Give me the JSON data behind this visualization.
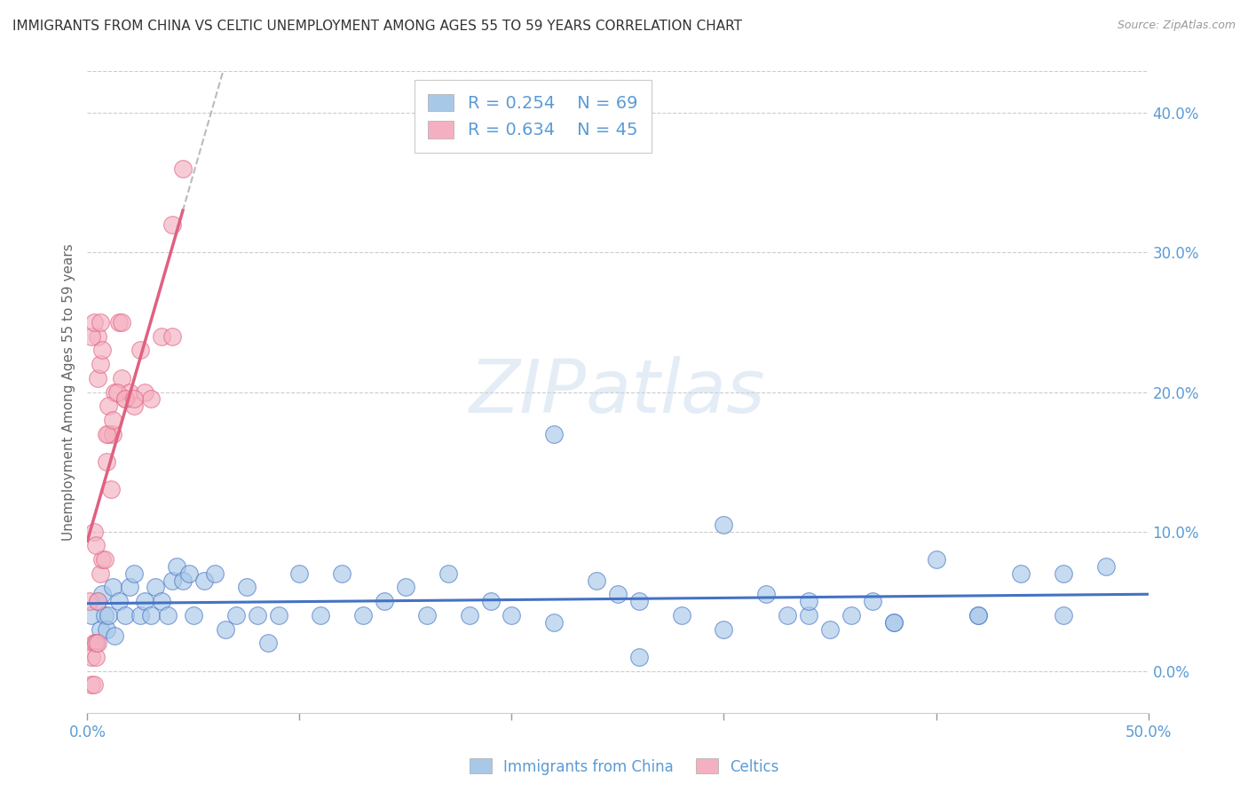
{
  "title": "IMMIGRANTS FROM CHINA VS CELTIC UNEMPLOYMENT AMONG AGES 55 TO 59 YEARS CORRELATION CHART",
  "source": "Source: ZipAtlas.com",
  "ylabel": "Unemployment Among Ages 55 to 59 years",
  "watermark": "ZIPatlas",
  "xlim": [
    0.0,
    0.5
  ],
  "ylim": [
    -0.03,
    0.43
  ],
  "yticks": [
    0.0,
    0.1,
    0.2,
    0.3,
    0.4
  ],
  "xtick_positions": [
    0.0,
    0.1,
    0.2,
    0.3,
    0.4,
    0.5
  ],
  "ytick_labels_right": [
    "0.0%",
    "10.0%",
    "20.0%",
    "30.0%",
    "40.0%"
  ],
  "blue_R": "0.254",
  "blue_N": "69",
  "pink_R": "0.634",
  "pink_N": "45",
  "blue_fill_color": "#A8C8E8",
  "pink_fill_color": "#F4B0C0",
  "blue_line_color": "#4472C4",
  "pink_line_color": "#E06080",
  "axis_color": "#5B9BD5",
  "legend_label_blue": "Immigrants from China",
  "legend_label_pink": "Celtics",
  "blue_points_x": [
    0.002,
    0.004,
    0.005,
    0.006,
    0.007,
    0.008,
    0.009,
    0.01,
    0.012,
    0.013,
    0.015,
    0.018,
    0.02,
    0.022,
    0.025,
    0.027,
    0.03,
    0.032,
    0.035,
    0.038,
    0.04,
    0.042,
    0.045,
    0.048,
    0.05,
    0.055,
    0.06,
    0.065,
    0.07,
    0.075,
    0.08,
    0.085,
    0.09,
    0.1,
    0.11,
    0.12,
    0.13,
    0.14,
    0.15,
    0.16,
    0.17,
    0.18,
    0.19,
    0.2,
    0.22,
    0.24,
    0.25,
    0.26,
    0.28,
    0.3,
    0.32,
    0.33,
    0.35,
    0.37,
    0.38,
    0.4,
    0.42,
    0.44,
    0.46,
    0.48,
    0.22,
    0.26,
    0.3,
    0.34,
    0.38,
    0.34,
    0.36,
    0.42,
    0.46
  ],
  "blue_points_y": [
    0.04,
    0.02,
    0.05,
    0.03,
    0.055,
    0.04,
    0.03,
    0.04,
    0.06,
    0.025,
    0.05,
    0.04,
    0.06,
    0.07,
    0.04,
    0.05,
    0.04,
    0.06,
    0.05,
    0.04,
    0.065,
    0.075,
    0.065,
    0.07,
    0.04,
    0.065,
    0.07,
    0.03,
    0.04,
    0.06,
    0.04,
    0.02,
    0.04,
    0.07,
    0.04,
    0.07,
    0.04,
    0.05,
    0.06,
    0.04,
    0.07,
    0.04,
    0.05,
    0.04,
    0.17,
    0.065,
    0.055,
    0.05,
    0.04,
    0.105,
    0.055,
    0.04,
    0.03,
    0.05,
    0.035,
    0.08,
    0.04,
    0.07,
    0.04,
    0.075,
    0.035,
    0.01,
    0.03,
    0.04,
    0.035,
    0.05,
    0.04,
    0.04,
    0.07
  ],
  "pink_points_x": [
    0.001,
    0.002,
    0.002,
    0.003,
    0.003,
    0.004,
    0.004,
    0.005,
    0.005,
    0.006,
    0.007,
    0.008,
    0.009,
    0.01,
    0.011,
    0.012,
    0.013,
    0.015,
    0.016,
    0.018,
    0.02,
    0.022,
    0.025,
    0.027,
    0.03,
    0.035,
    0.04,
    0.045,
    0.003,
    0.004,
    0.005,
    0.005,
    0.006,
    0.007,
    0.009,
    0.01,
    0.012,
    0.014,
    0.016,
    0.018,
    0.022,
    0.04,
    0.002,
    0.003,
    0.006
  ],
  "pink_points_y": [
    0.05,
    0.01,
    -0.01,
    0.02,
    -0.01,
    0.02,
    0.01,
    0.05,
    0.02,
    0.07,
    0.08,
    0.08,
    0.15,
    0.17,
    0.13,
    0.17,
    0.2,
    0.25,
    0.21,
    0.195,
    0.2,
    0.19,
    0.23,
    0.2,
    0.195,
    0.24,
    0.32,
    0.36,
    0.1,
    0.09,
    0.21,
    0.24,
    0.22,
    0.23,
    0.17,
    0.19,
    0.18,
    0.2,
    0.25,
    0.195,
    0.195,
    0.24,
    0.24,
    0.25,
    0.25
  ]
}
